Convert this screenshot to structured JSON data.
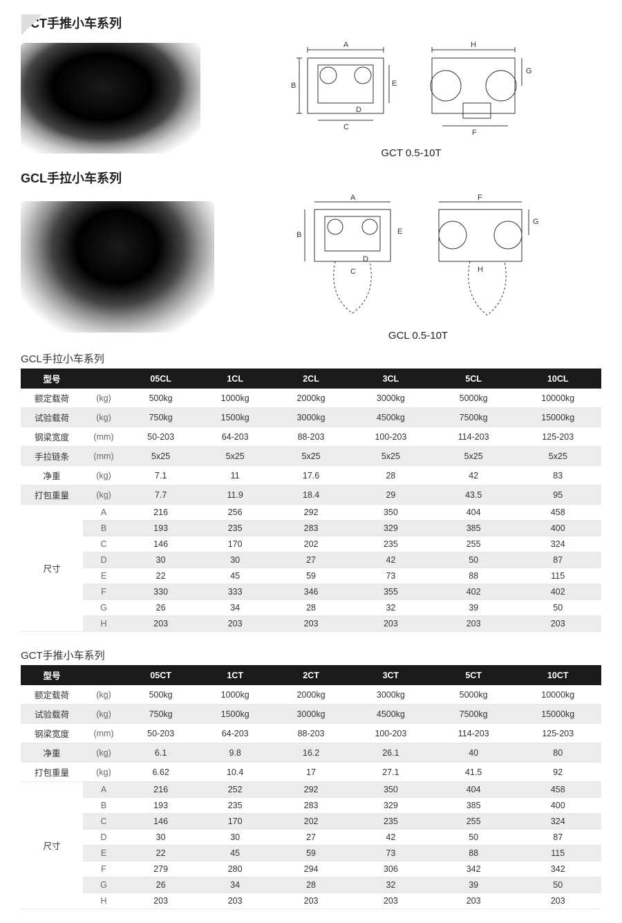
{
  "gct_section": {
    "title": "GCT手推小车系列",
    "diagram_caption": "GCT 0.5-10T"
  },
  "gcl_section": {
    "title": "GCL手拉小车系列",
    "diagram_caption": "GCL 0.5-10T"
  },
  "table_gcl": {
    "title": "GCL手拉小车系列",
    "header": [
      "型号",
      "",
      "05CL",
      "1CL",
      "2CL",
      "3CL",
      "5CL",
      "10CL"
    ],
    "rows": [
      {
        "label": "额定载荷",
        "unit": "(kg)",
        "vals": [
          "500kg",
          "1000kg",
          "2000kg",
          "3000kg",
          "5000kg",
          "10000kg"
        ],
        "alt": false
      },
      {
        "label": "试验载荷",
        "unit": "(kg)",
        "vals": [
          "750kg",
          "1500kg",
          "3000kg",
          "4500kg",
          "7500kg",
          "15000kg"
        ],
        "alt": true
      },
      {
        "label": "钢梁宽度",
        "unit": "(mm)",
        "vals": [
          "50-203",
          "64-203",
          "88-203",
          "100-203",
          "114-203",
          "125-203"
        ],
        "alt": false
      },
      {
        "label": "手拉链条",
        "unit": "(mm)",
        "vals": [
          "5x25",
          "5x25",
          "5x25",
          "5x25",
          "5x25",
          "5x25"
        ],
        "alt": true
      },
      {
        "label": "净重",
        "unit": "(kg)",
        "vals": [
          "7.1",
          "11",
          "17.6",
          "28",
          "42",
          "83"
        ],
        "alt": false
      },
      {
        "label": "打包重量",
        "unit": "(kg)",
        "vals": [
          "7.7",
          "11.9",
          "18.4",
          "29",
          "43.5",
          "95"
        ],
        "alt": true
      }
    ],
    "dims_label": "尺寸",
    "dims": [
      {
        "k": "A",
        "vals": [
          "216",
          "256",
          "292",
          "350",
          "404",
          "458"
        ],
        "alt": false
      },
      {
        "k": "B",
        "vals": [
          "193",
          "235",
          "283",
          "329",
          "385",
          "400"
        ],
        "alt": true
      },
      {
        "k": "C",
        "vals": [
          "146",
          "170",
          "202",
          "235",
          "255",
          "324"
        ],
        "alt": false
      },
      {
        "k": "D",
        "vals": [
          "30",
          "30",
          "27",
          "42",
          "50",
          "87"
        ],
        "alt": true
      },
      {
        "k": "E",
        "vals": [
          "22",
          "45",
          "59",
          "73",
          "88",
          "115"
        ],
        "alt": false
      },
      {
        "k": "F",
        "vals": [
          "330",
          "333",
          "346",
          "355",
          "402",
          "402"
        ],
        "alt": true
      },
      {
        "k": "G",
        "vals": [
          "26",
          "34",
          "28",
          "32",
          "39",
          "50"
        ],
        "alt": false
      },
      {
        "k": "H",
        "vals": [
          "203",
          "203",
          "203",
          "203",
          "203",
          "203"
        ],
        "alt": true
      }
    ]
  },
  "table_gct": {
    "title": "GCT手推小车系列",
    "header": [
      "型号",
      "",
      "05CT",
      "1CT",
      "2CT",
      "3CT",
      "5CT",
      "10CT"
    ],
    "rows": [
      {
        "label": "额定载荷",
        "unit": "(kg)",
        "vals": [
          "500kg",
          "1000kg",
          "2000kg",
          "3000kg",
          "5000kg",
          "10000kg"
        ],
        "alt": false
      },
      {
        "label": "试验载荷",
        "unit": "(kg)",
        "vals": [
          "750kg",
          "1500kg",
          "3000kg",
          "4500kg",
          "7500kg",
          "15000kg"
        ],
        "alt": true
      },
      {
        "label": "钢梁宽度",
        "unit": "(mm)",
        "vals": [
          "50-203",
          "64-203",
          "88-203",
          "100-203",
          "114-203",
          "125-203"
        ],
        "alt": false
      },
      {
        "label": "净重",
        "unit": "(kg)",
        "vals": [
          "6.1",
          "9.8",
          "16.2",
          "26.1",
          "40",
          "80"
        ],
        "alt": true
      },
      {
        "label": "打包重量",
        "unit": "(kg)",
        "vals": [
          "6.62",
          "10.4",
          "17",
          "27.1",
          "41.5",
          "92"
        ],
        "alt": false
      }
    ],
    "dims_label": "尺寸",
    "dims": [
      {
        "k": "A",
        "vals": [
          "216",
          "252",
          "292",
          "350",
          "404",
          "458"
        ],
        "alt": true
      },
      {
        "k": "B",
        "vals": [
          "193",
          "235",
          "283",
          "329",
          "385",
          "400"
        ],
        "alt": false
      },
      {
        "k": "C",
        "vals": [
          "146",
          "170",
          "202",
          "235",
          "255",
          "324"
        ],
        "alt": true
      },
      {
        "k": "D",
        "vals": [
          "30",
          "30",
          "27",
          "42",
          "50",
          "87"
        ],
        "alt": false
      },
      {
        "k": "E",
        "vals": [
          "22",
          "45",
          "59",
          "73",
          "88",
          "115"
        ],
        "alt": true
      },
      {
        "k": "F",
        "vals": [
          "279",
          "280",
          "294",
          "306",
          "342",
          "342"
        ],
        "alt": false
      },
      {
        "k": "G",
        "vals": [
          "26",
          "34",
          "28",
          "32",
          "39",
          "50"
        ],
        "alt": true
      },
      {
        "k": "H",
        "vals": [
          "203",
          "203",
          "203",
          "203",
          "203",
          "203"
        ],
        "alt": false
      }
    ]
  },
  "diagram": {
    "letters": [
      "A",
      "B",
      "C",
      "D",
      "E",
      "F",
      "G",
      "H"
    ],
    "stroke": "#333333",
    "stroke_width": 1
  },
  "colors": {
    "header_bg": "#1a1a1a",
    "header_fg": "#ffffff",
    "row_alt": "#ececec",
    "border": "#e8e8e8"
  }
}
